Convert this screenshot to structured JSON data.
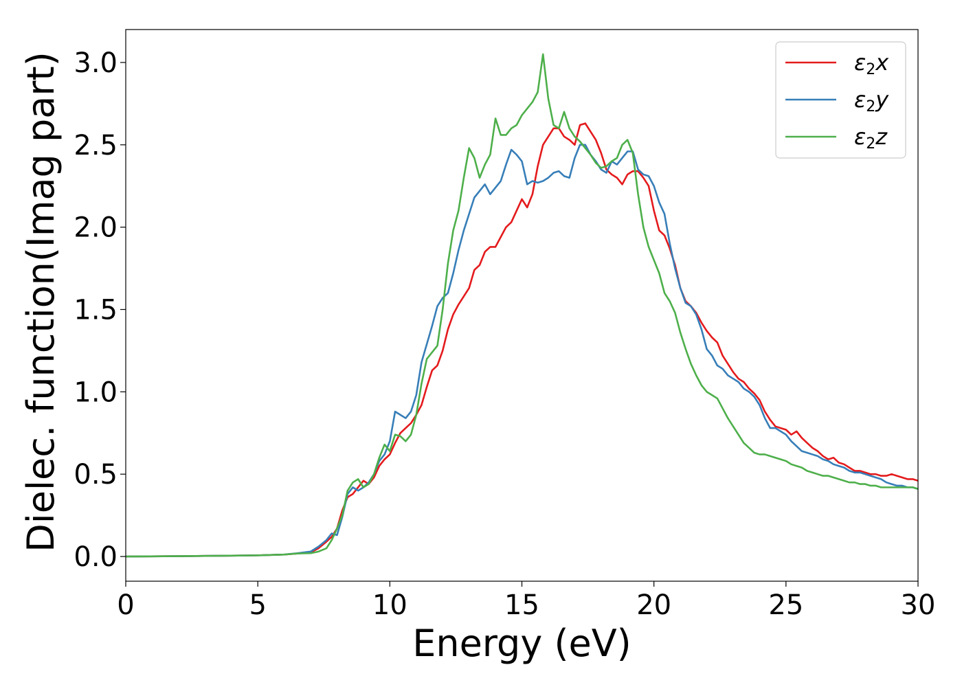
{
  "chart_data": {
    "type": "line",
    "xlabel": "Energy (eV)",
    "ylabel": "Dielec. function(Imag part)",
    "xlim": [
      0,
      30
    ],
    "ylim": [
      -0.15,
      3.2
    ],
    "xticks": [
      0,
      5,
      10,
      15,
      20,
      25,
      30
    ],
    "xtick_labels": [
      "0",
      "5",
      "10",
      "15",
      "20",
      "25",
      "30"
    ],
    "yticks": [
      0.0,
      0.5,
      1.0,
      1.5,
      2.0,
      2.5,
      3.0
    ],
    "ytick_labels": [
      "0.0",
      "0.5",
      "1.0",
      "1.5",
      "2.0",
      "2.5",
      "3.0"
    ],
    "grid": false,
    "legend_position": "top-right",
    "series": [
      {
        "name": "ε2x",
        "legend_base": "ε",
        "legend_sub": "2",
        "legend_var": "x",
        "color": "#e41a1c",
        "x": [
          0,
          2,
          4,
          5,
          6,
          6.5,
          7,
          7.3,
          7.6,
          7.8,
          8.0,
          8.2,
          8.4,
          8.6,
          8.8,
          9.0,
          9.2,
          9.4,
          9.6,
          9.8,
          10.0,
          10.2,
          10.4,
          10.6,
          10.8,
          11.0,
          11.2,
          11.4,
          11.6,
          11.8,
          12.0,
          12.2,
          12.4,
          12.6,
          12.8,
          13.0,
          13.2,
          13.4,
          13.6,
          13.8,
          14.0,
          14.2,
          14.4,
          14.6,
          14.8,
          15.0,
          15.2,
          15.4,
          15.6,
          15.8,
          16.0,
          16.2,
          16.4,
          16.6,
          16.8,
          17.0,
          17.2,
          17.4,
          17.6,
          17.8,
          18.0,
          18.2,
          18.4,
          18.6,
          18.8,
          19.0,
          19.2,
          19.4,
          19.6,
          19.8,
          20.0,
          20.2,
          20.4,
          20.6,
          20.8,
          21.0,
          21.2,
          21.4,
          21.6,
          21.8,
          22.0,
          22.2,
          22.4,
          22.6,
          22.8,
          23.0,
          23.2,
          23.4,
          23.6,
          23.8,
          24.0,
          24.2,
          24.4,
          24.6,
          24.8,
          25.0,
          25.2,
          25.4,
          25.6,
          25.8,
          26.0,
          26.2,
          26.4,
          26.6,
          26.8,
          27.0,
          27.2,
          27.4,
          27.6,
          27.8,
          28.0,
          28.2,
          28.4,
          28.6,
          28.8,
          29.0,
          29.2,
          29.4,
          29.6,
          29.8,
          30.0
        ],
        "y": [
          0.0,
          0.002,
          0.005,
          0.007,
          0.012,
          0.018,
          0.025,
          0.05,
          0.09,
          0.12,
          0.17,
          0.28,
          0.36,
          0.38,
          0.42,
          0.46,
          0.44,
          0.48,
          0.55,
          0.59,
          0.62,
          0.69,
          0.75,
          0.78,
          0.81,
          0.86,
          0.92,
          1.03,
          1.13,
          1.16,
          1.25,
          1.38,
          1.47,
          1.53,
          1.58,
          1.63,
          1.74,
          1.77,
          1.85,
          1.88,
          1.88,
          1.94,
          2.0,
          2.03,
          2.1,
          2.17,
          2.12,
          2.2,
          2.37,
          2.5,
          2.55,
          2.6,
          2.6,
          2.55,
          2.53,
          2.5,
          2.62,
          2.63,
          2.58,
          2.53,
          2.45,
          2.35,
          2.32,
          2.3,
          2.26,
          2.32,
          2.34,
          2.34,
          2.3,
          2.25,
          2.1,
          1.98,
          1.95,
          1.87,
          1.77,
          1.63,
          1.55,
          1.52,
          1.48,
          1.42,
          1.37,
          1.33,
          1.3,
          1.22,
          1.17,
          1.12,
          1.08,
          1.06,
          1.02,
          0.99,
          0.95,
          0.88,
          0.83,
          0.79,
          0.78,
          0.77,
          0.74,
          0.76,
          0.72,
          0.69,
          0.66,
          0.64,
          0.61,
          0.59,
          0.6,
          0.57,
          0.56,
          0.54,
          0.52,
          0.52,
          0.51,
          0.5,
          0.5,
          0.49,
          0.49,
          0.5,
          0.49,
          0.48,
          0.47,
          0.47,
          0.46
        ]
      },
      {
        "name": "ε2y",
        "legend_base": "ε",
        "legend_sub": "2",
        "legend_var": "y",
        "color": "#377eb8",
        "x": [
          0,
          2,
          4,
          5,
          6,
          6.5,
          7,
          7.3,
          7.6,
          7.8,
          8.0,
          8.2,
          8.4,
          8.6,
          8.8,
          9.0,
          9.2,
          9.4,
          9.6,
          9.8,
          10.0,
          10.2,
          10.4,
          10.6,
          10.8,
          11.0,
          11.2,
          11.4,
          11.6,
          11.8,
          12.0,
          12.2,
          12.4,
          12.6,
          12.8,
          13.0,
          13.2,
          13.4,
          13.6,
          13.8,
          14.0,
          14.2,
          14.4,
          14.6,
          14.8,
          15.0,
          15.2,
          15.4,
          15.6,
          15.8,
          16.0,
          16.2,
          16.4,
          16.6,
          16.8,
          17.0,
          17.2,
          17.4,
          17.6,
          17.8,
          18.0,
          18.2,
          18.4,
          18.6,
          18.8,
          19.0,
          19.2,
          19.4,
          19.6,
          19.8,
          20.0,
          20.2,
          20.4,
          20.6,
          20.8,
          21.0,
          21.2,
          21.4,
          21.6,
          21.8,
          22.0,
          22.2,
          22.4,
          22.6,
          22.8,
          23.0,
          23.2,
          23.4,
          23.6,
          23.8,
          24.0,
          24.2,
          24.4,
          24.6,
          24.8,
          25.0,
          25.2,
          25.4,
          25.6,
          25.8,
          26.0,
          26.2,
          26.4,
          26.6,
          26.8,
          27.0,
          27.2,
          27.4,
          27.6,
          27.8,
          28.0,
          28.2,
          28.4,
          28.6,
          28.8,
          29.0,
          29.2,
          29.4,
          29.6,
          29.8,
          30.0
        ],
        "y": [
          0.0,
          0.002,
          0.005,
          0.007,
          0.012,
          0.02,
          0.03,
          0.06,
          0.1,
          0.14,
          0.13,
          0.24,
          0.38,
          0.42,
          0.4,
          0.42,
          0.45,
          0.5,
          0.58,
          0.62,
          0.7,
          0.88,
          0.86,
          0.84,
          0.88,
          0.98,
          1.18,
          1.29,
          1.4,
          1.52,
          1.57,
          1.6,
          1.72,
          1.86,
          1.98,
          2.08,
          2.18,
          2.22,
          2.26,
          2.2,
          2.24,
          2.28,
          2.38,
          2.47,
          2.44,
          2.4,
          2.26,
          2.28,
          2.27,
          2.28,
          2.3,
          2.33,
          2.34,
          2.31,
          2.3,
          2.42,
          2.5,
          2.5,
          2.44,
          2.4,
          2.35,
          2.33,
          2.4,
          2.38,
          2.42,
          2.46,
          2.46,
          2.35,
          2.32,
          2.31,
          2.25,
          2.15,
          2.08,
          1.9,
          1.75,
          1.63,
          1.54,
          1.52,
          1.47,
          1.38,
          1.26,
          1.22,
          1.16,
          1.14,
          1.1,
          1.08,
          1.06,
          1.02,
          1.0,
          0.97,
          0.92,
          0.84,
          0.78,
          0.78,
          0.76,
          0.74,
          0.7,
          0.67,
          0.64,
          0.63,
          0.62,
          0.61,
          0.59,
          0.58,
          0.56,
          0.55,
          0.54,
          0.52,
          0.51,
          0.51,
          0.5,
          0.49,
          0.48,
          0.47,
          0.45,
          0.44,
          0.43,
          0.43,
          0.42,
          0.42,
          0.41
        ]
      },
      {
        "name": "ε2z",
        "legend_base": "ε",
        "legend_sub": "2",
        "legend_var": "z",
        "color": "#4daf4a",
        "x": [
          0,
          2,
          4,
          5,
          6,
          6.5,
          7,
          7.3,
          7.6,
          7.8,
          8.0,
          8.2,
          8.4,
          8.6,
          8.8,
          9.0,
          9.2,
          9.4,
          9.6,
          9.8,
          10.0,
          10.2,
          10.4,
          10.6,
          10.8,
          11.0,
          11.2,
          11.4,
          11.6,
          11.8,
          12.0,
          12.2,
          12.4,
          12.6,
          12.8,
          13.0,
          13.2,
          13.4,
          13.6,
          13.8,
          14.0,
          14.2,
          14.4,
          14.6,
          14.8,
          15.0,
          15.2,
          15.4,
          15.6,
          15.8,
          16.0,
          16.2,
          16.4,
          16.6,
          16.8,
          17.0,
          17.2,
          17.4,
          17.6,
          17.8,
          18.0,
          18.2,
          18.4,
          18.6,
          18.8,
          19.0,
          19.2,
          19.4,
          19.6,
          19.8,
          20.0,
          20.2,
          20.4,
          20.6,
          20.8,
          21.0,
          21.2,
          21.4,
          21.6,
          21.8,
          22.0,
          22.2,
          22.4,
          22.6,
          22.8,
          23.0,
          23.2,
          23.4,
          23.6,
          23.8,
          24.0,
          24.2,
          24.4,
          24.6,
          24.8,
          25.0,
          25.2,
          25.4,
          25.6,
          25.8,
          26.0,
          26.2,
          26.4,
          26.6,
          26.8,
          27.0,
          27.2,
          27.4,
          27.6,
          27.8,
          28.0,
          28.2,
          28.4,
          28.6,
          28.8,
          29.0,
          29.2,
          29.4,
          29.6,
          29.8,
          30.0
        ],
        "y": [
          0.0,
          0.002,
          0.005,
          0.007,
          0.012,
          0.018,
          0.02,
          0.03,
          0.05,
          0.1,
          0.17,
          0.25,
          0.4,
          0.45,
          0.47,
          0.42,
          0.44,
          0.5,
          0.6,
          0.68,
          0.64,
          0.74,
          0.73,
          0.7,
          0.74,
          0.86,
          1.05,
          1.2,
          1.24,
          1.28,
          1.5,
          1.78,
          1.98,
          2.1,
          2.3,
          2.48,
          2.42,
          2.3,
          2.38,
          2.44,
          2.66,
          2.56,
          2.56,
          2.6,
          2.62,
          2.68,
          2.72,
          2.76,
          2.82,
          3.05,
          2.78,
          2.62,
          2.6,
          2.7,
          2.6,
          2.55,
          2.52,
          2.48,
          2.44,
          2.39,
          2.36,
          2.37,
          2.4,
          2.42,
          2.5,
          2.53,
          2.45,
          2.2,
          2.0,
          1.88,
          1.8,
          1.72,
          1.6,
          1.55,
          1.48,
          1.36,
          1.26,
          1.17,
          1.1,
          1.04,
          1.0,
          0.98,
          0.96,
          0.9,
          0.84,
          0.79,
          0.74,
          0.69,
          0.66,
          0.63,
          0.62,
          0.62,
          0.61,
          0.6,
          0.59,
          0.58,
          0.56,
          0.55,
          0.54,
          0.52,
          0.51,
          0.5,
          0.49,
          0.49,
          0.48,
          0.47,
          0.46,
          0.45,
          0.45,
          0.44,
          0.44,
          0.43,
          0.43,
          0.42,
          0.42,
          0.42,
          0.42,
          0.42,
          0.42,
          0.42,
          0.41
        ]
      }
    ]
  }
}
